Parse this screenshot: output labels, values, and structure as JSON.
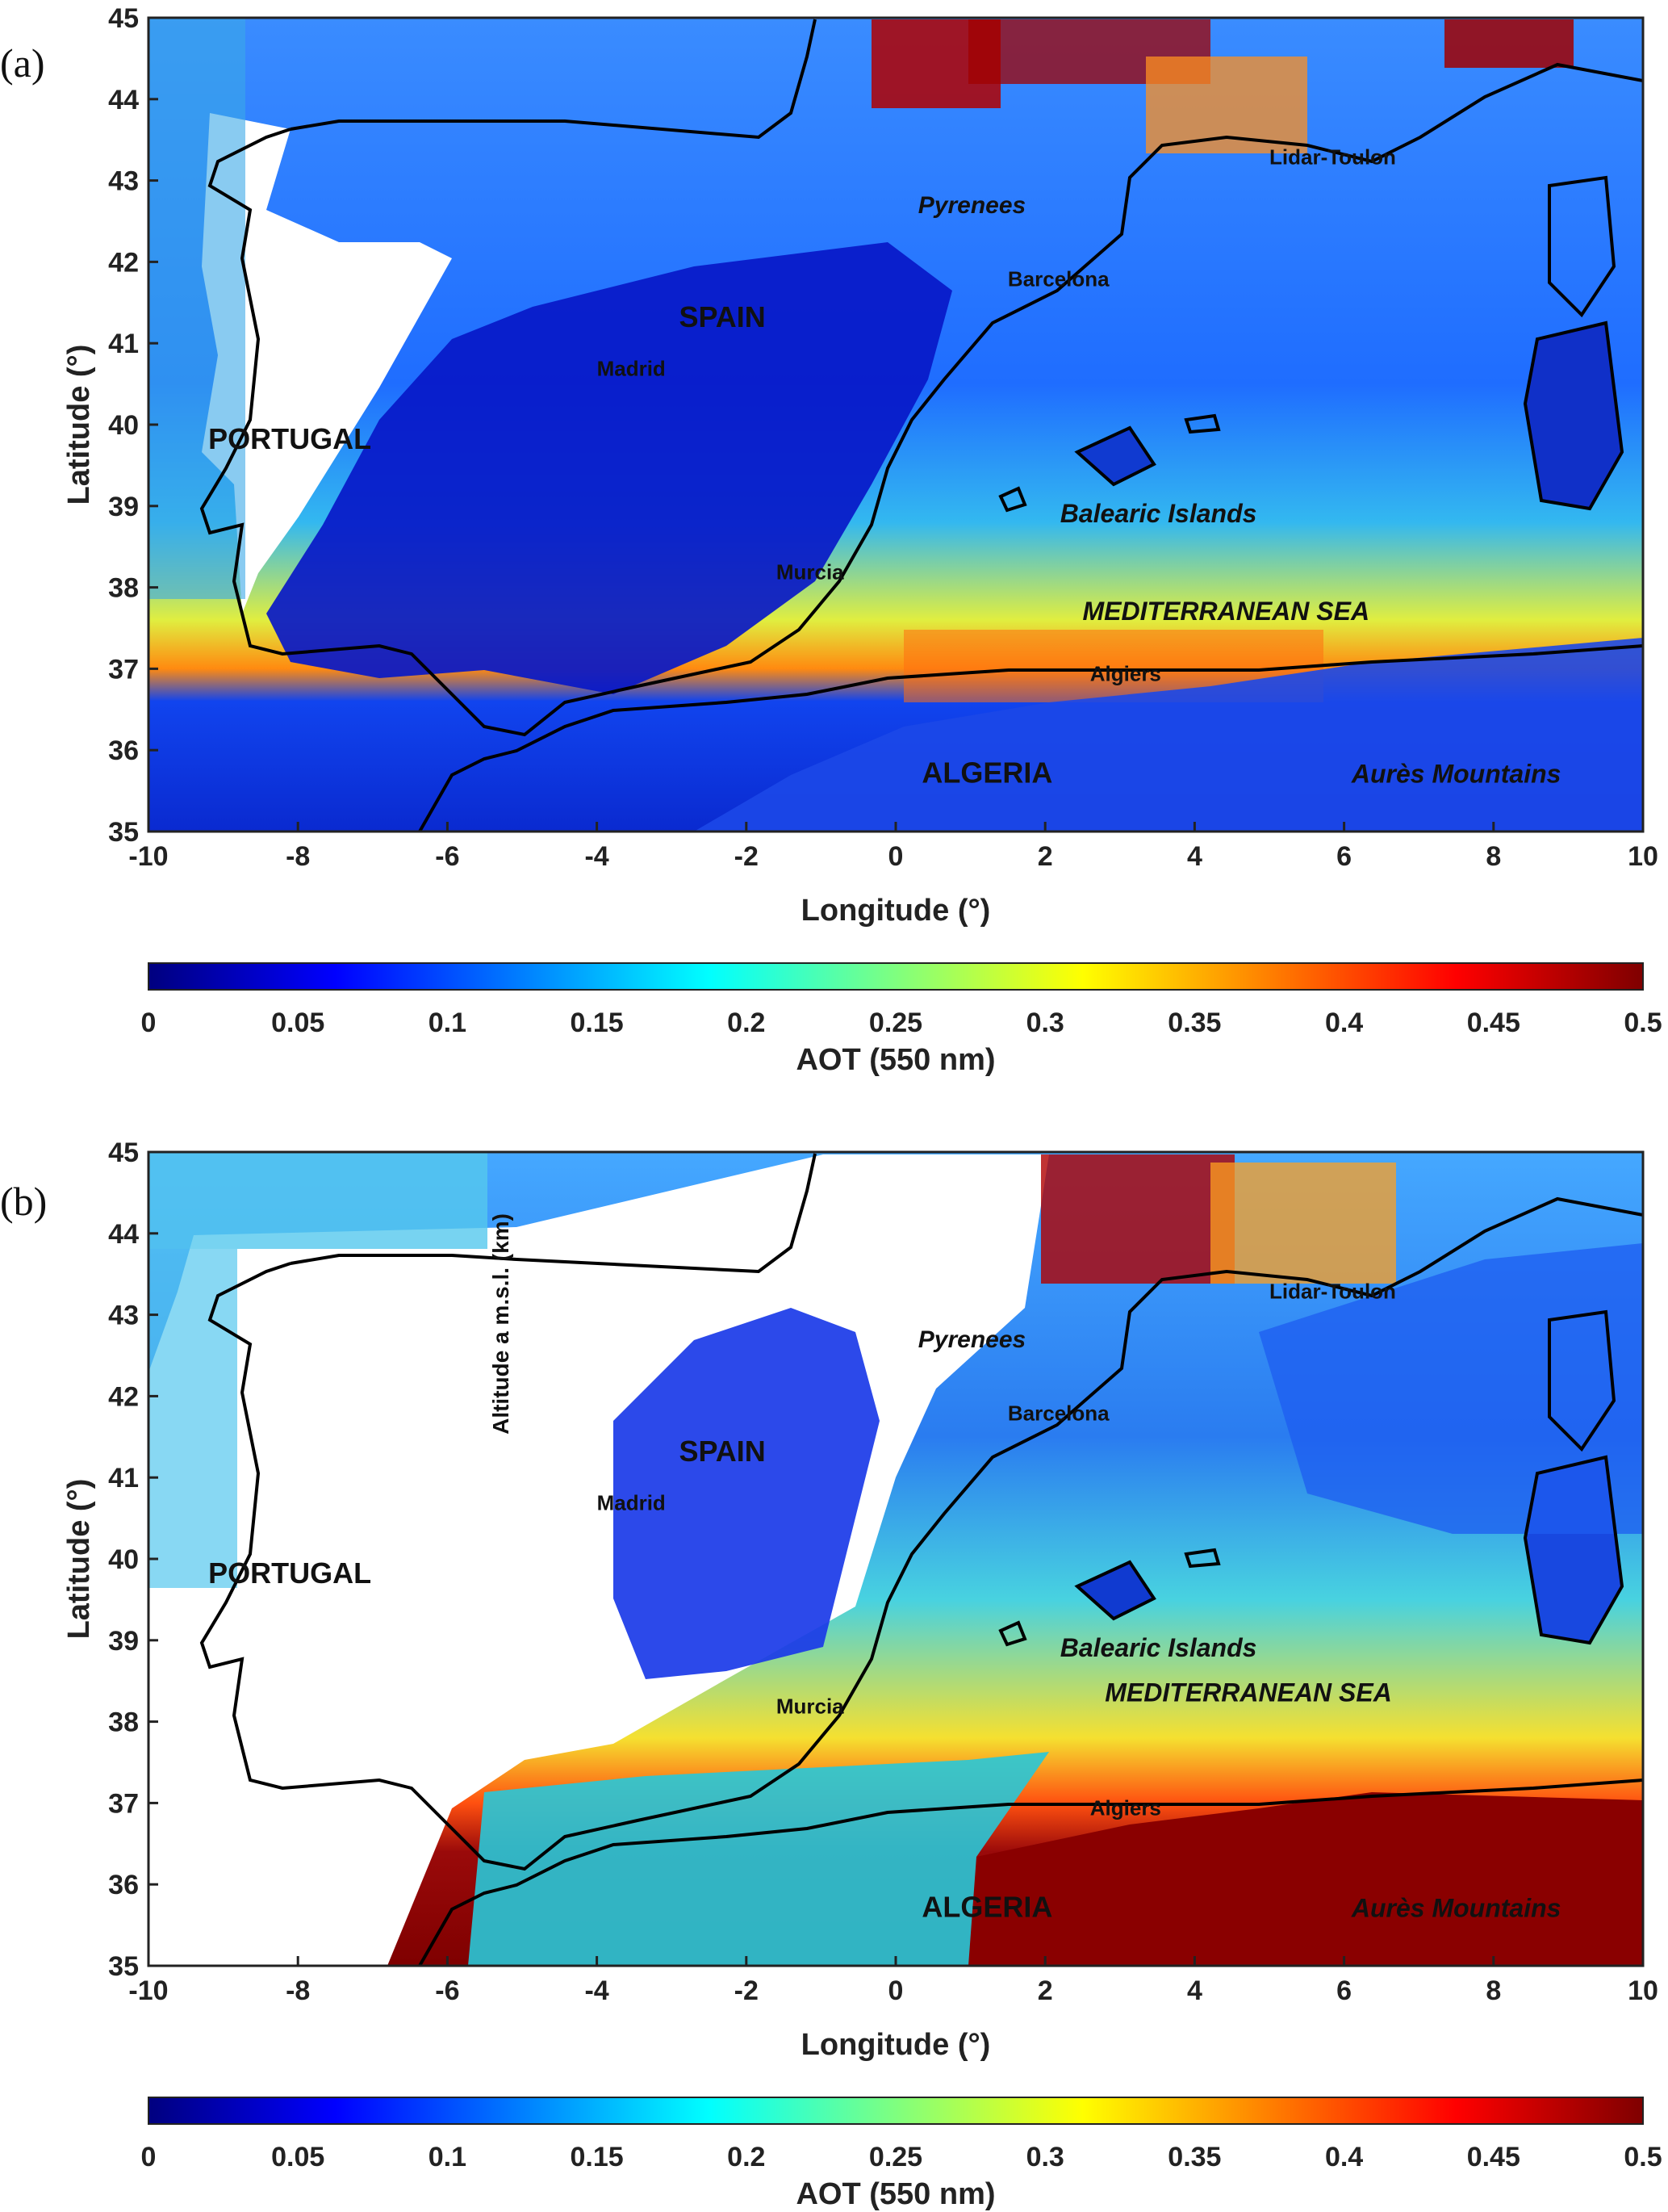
{
  "panels": [
    {
      "label": "(a)",
      "xlabel": "Longitude (°)",
      "ylabel": "Latitude (°)",
      "xticks": [
        "-10",
        "-8",
        "-6",
        "-4",
        "-2",
        "0",
        "2",
        "4",
        "6",
        "8",
        "10"
      ],
      "yticks": [
        "45",
        "44",
        "43",
        "42",
        "41",
        "40",
        "39",
        "38",
        "37",
        "36",
        "35"
      ],
      "colorbar_label": "AOT (550 nm)",
      "colorbar_ticks": [
        "0",
        "0.05",
        "0.1",
        "0.15",
        "0.2",
        "0.25",
        "0.3",
        "0.35",
        "0.4",
        "0.45",
        "0.5"
      ],
      "places": [
        {
          "text": "PORTUGAL",
          "lon": -9.2,
          "lat": 39.7,
          "size": 36,
          "italic": false,
          "color": "#111111"
        },
        {
          "text": "SPAIN",
          "lon": -2.9,
          "lat": 41.2,
          "size": 36,
          "italic": false,
          "color": "#111111"
        },
        {
          "text": "Madrid",
          "lon": -4.0,
          "lat": 40.6,
          "size": 26,
          "italic": false,
          "color": "#111111"
        },
        {
          "text": "Murcia",
          "lon": -1.6,
          "lat": 38.1,
          "size": 26,
          "italic": false,
          "color": "#111111"
        },
        {
          "text": "Barcelona",
          "lon": 1.5,
          "lat": 41.7,
          "size": 26,
          "italic": false,
          "color": "#111111"
        },
        {
          "text": "Pyrenees",
          "lon": 0.3,
          "lat": 42.6,
          "size": 30,
          "italic": true,
          "color": "#111111"
        },
        {
          "text": "Lidar-Toulon",
          "lon": 5.0,
          "lat": 43.2,
          "size": 26,
          "italic": false,
          "color": "#111111"
        },
        {
          "text": "Balearic Islands",
          "lon": 2.2,
          "lat": 38.8,
          "size": 32,
          "italic": true,
          "color": "#111111"
        },
        {
          "text": "MEDITERRANEAN SEA",
          "lon": 2.5,
          "lat": 37.6,
          "size": 32,
          "italic": true,
          "color": "#111111"
        },
        {
          "text": "Algiers",
          "lon": 2.6,
          "lat": 36.85,
          "size": 26,
          "italic": false,
          "color": "#111111"
        },
        {
          "text": "ALGERIA",
          "lon": 0.35,
          "lat": 35.6,
          "size": 36,
          "italic": false,
          "color": "#111111"
        },
        {
          "text": "Aurès Mountains",
          "lon": 6.1,
          "lat": 35.6,
          "size": 32,
          "italic": true,
          "color": "#111111"
        }
      ]
    },
    {
      "label": "(b)",
      "xlabel": "Longitude (°)",
      "ylabel": "Latitude (°)",
      "xticks": [
        "-10",
        "-8",
        "-6",
        "-4",
        "-2",
        "0",
        "2",
        "4",
        "6",
        "8",
        "10"
      ],
      "yticks": [
        "45",
        "44",
        "43",
        "42",
        "41",
        "40",
        "39",
        "38",
        "37",
        "36",
        "35"
      ],
      "colorbar_label": "AOT (550 nm)",
      "colorbar_ticks": [
        "0",
        "0.05",
        "0.1",
        "0.15",
        "0.2",
        "0.25",
        "0.3",
        "0.35",
        "0.4",
        "0.45",
        "0.5"
      ],
      "stray_label": "Altitude a m.s.l. (km)",
      "places": [
        {
          "text": "PORTUGAL",
          "lon": -9.2,
          "lat": 39.7,
          "size": 36,
          "italic": false,
          "color": "#111111"
        },
        {
          "text": "SPAIN",
          "lon": -2.9,
          "lat": 41.2,
          "size": 36,
          "italic": false,
          "color": "#111111"
        },
        {
          "text": "Madrid",
          "lon": -4.0,
          "lat": 40.6,
          "size": 26,
          "italic": false,
          "color": "#111111"
        },
        {
          "text": "Murcia",
          "lon": -1.6,
          "lat": 38.1,
          "size": 26,
          "italic": false,
          "color": "#f0c000"
        },
        {
          "text": "Barcelona",
          "lon": 1.5,
          "lat": 41.7,
          "size": 26,
          "italic": false,
          "color": "#111111"
        },
        {
          "text": "Pyrenees",
          "lon": 0.3,
          "lat": 42.6,
          "size": 30,
          "italic": true,
          "color": "#111111"
        },
        {
          "text": "Lidar-Toulon",
          "lon": 5.0,
          "lat": 43.2,
          "size": 26,
          "italic": false,
          "color": "#111111"
        },
        {
          "text": "Balearic Islands",
          "lon": 2.2,
          "lat": 38.8,
          "size": 32,
          "italic": true,
          "color": "#111111"
        },
        {
          "text": "MEDITERRANEAN SEA",
          "lon": 2.8,
          "lat": 38.25,
          "size": 32,
          "italic": true,
          "color": "#111111"
        },
        {
          "text": "Algiers",
          "lon": 2.6,
          "lat": 36.85,
          "size": 26,
          "italic": false,
          "color": "#111111"
        },
        {
          "text": "ALGERIA",
          "lon": 0.35,
          "lat": 35.6,
          "size": 36,
          "italic": false,
          "color": "#111111"
        },
        {
          "text": "Aurès Mountains",
          "lon": 6.1,
          "lat": 35.6,
          "size": 32,
          "italic": true,
          "color": "#111111"
        }
      ]
    }
  ],
  "colors": {
    "colormap": [
      "#00007f",
      "#0000ff",
      "#007fff",
      "#00ffff",
      "#7fff7f",
      "#ffff00",
      "#ff7f00",
      "#ff0000",
      "#7f0000"
    ],
    "coast": "#000000",
    "axes": "#222222"
  }
}
